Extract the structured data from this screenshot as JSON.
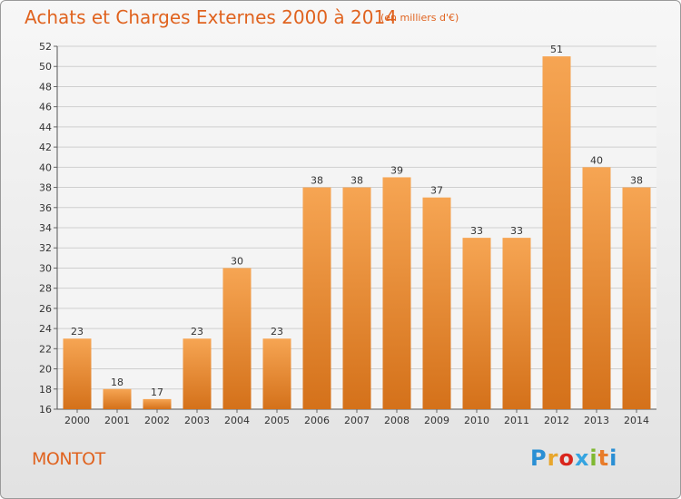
{
  "title": "Achats et Charges Externes 2000 à 2014",
  "title_unit": "(en milliers d'€)",
  "place": "MONTOT",
  "logo": {
    "text": "Proxiti",
    "colors": [
      "#2a8fd4",
      "#e8a62c",
      "#d9251c",
      "#35a4e0",
      "#7fb832",
      "#e87c2a",
      "#2a8fd4"
    ]
  },
  "colors": {
    "bar_top": "#f6a553",
    "bar_bottom": "#d4711a",
    "title": "#e0631f"
  },
  "chart_data": {
    "type": "bar",
    "title": "Achats et Charges Externes 2000 à 2014",
    "subtitle": "(en milliers d'€)",
    "categories": [
      "2000",
      "2001",
      "2002",
      "2003",
      "2004",
      "2005",
      "2006",
      "2007",
      "2008",
      "2009",
      "2010",
      "2011",
      "2012",
      "2013",
      "2014"
    ],
    "values": [
      23,
      18,
      17,
      23,
      30,
      23,
      38,
      38,
      39,
      37,
      33,
      33,
      51,
      40,
      38
    ],
    "ylim": [
      16,
      52
    ],
    "yticks": [
      16,
      18,
      20,
      22,
      24,
      26,
      28,
      30,
      32,
      34,
      36,
      38,
      40,
      42,
      44,
      46,
      48,
      50,
      52
    ],
    "grid": true,
    "xlabel": "",
    "ylabel": ""
  }
}
